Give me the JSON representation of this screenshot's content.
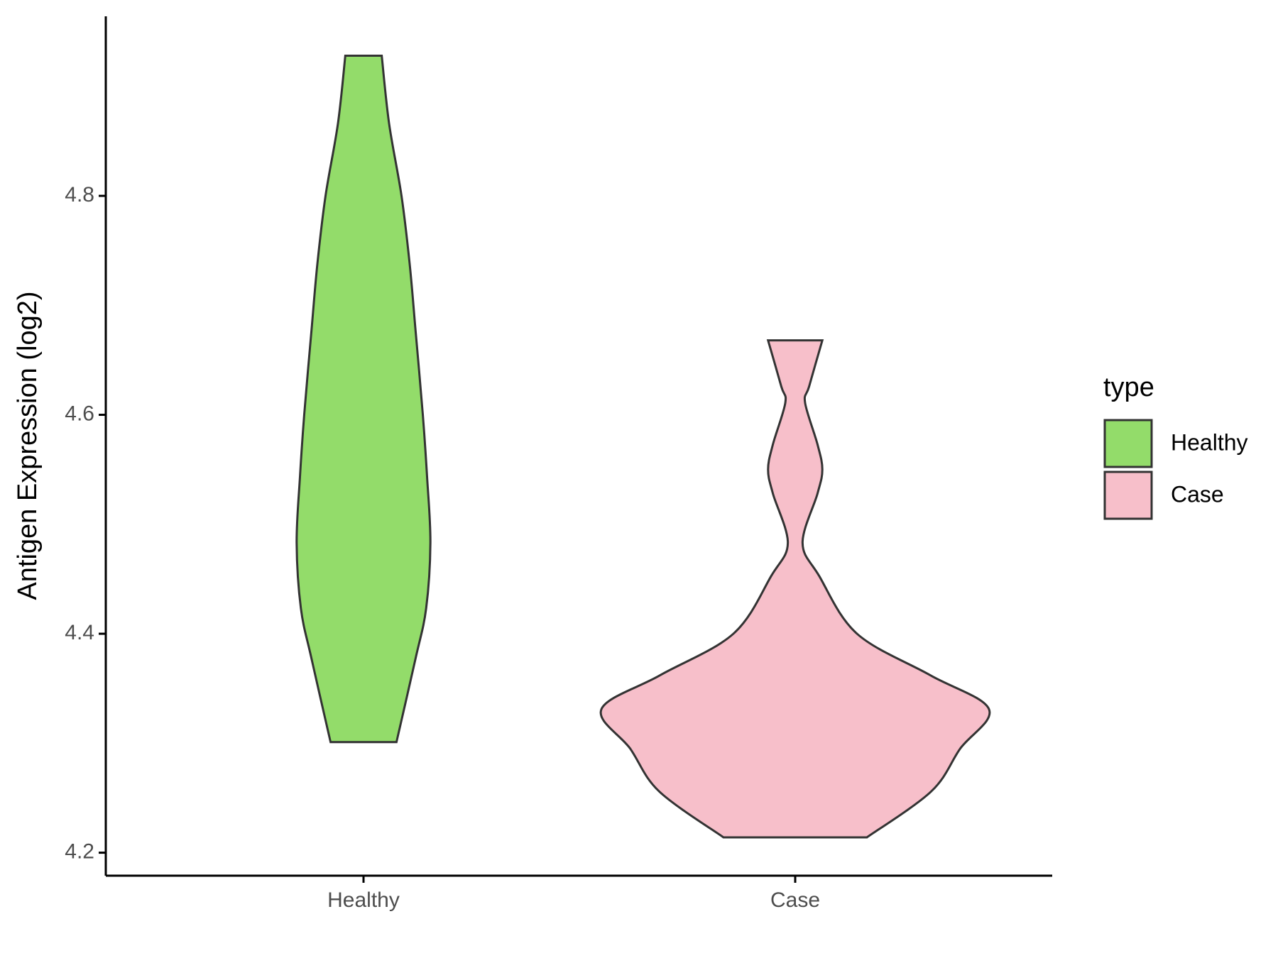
{
  "chart_data": {
    "type": "violin",
    "y_label": "Antigen Expression (log2)",
    "categories": [
      "Healthy",
      "Case"
    ],
    "legend_title": "type",
    "ylim": [
      4.179,
      4.964
    ],
    "yticks": [
      4.2,
      4.4,
      4.6,
      4.8
    ],
    "series": [
      {
        "name": "Healthy",
        "color": "#93dc6a",
        "y": [
          4.928,
          4.866,
          4.8,
          4.738,
          4.678,
          4.6,
          4.543,
          4.483,
          4.423,
          4.377,
          4.301
        ],
        "density": [
          0.094,
          0.132,
          0.196,
          0.238,
          0.268,
          0.306,
          0.328,
          0.345,
          0.323,
          0.268,
          0.17
        ]
      },
      {
        "name": "Case",
        "color": "#f7bfca",
        "y": [
          4.668,
          4.626,
          4.611,
          4.573,
          4.55,
          4.528,
          4.483,
          4.453,
          4.4,
          4.362,
          4.331,
          4.295,
          4.256,
          4.214
        ],
        "density": [
          0.14,
          0.072,
          0.051,
          0.115,
          0.14,
          0.115,
          0.038,
          0.123,
          0.319,
          0.698,
          1.0,
          0.851,
          0.702,
          0.37
        ]
      }
    ]
  }
}
